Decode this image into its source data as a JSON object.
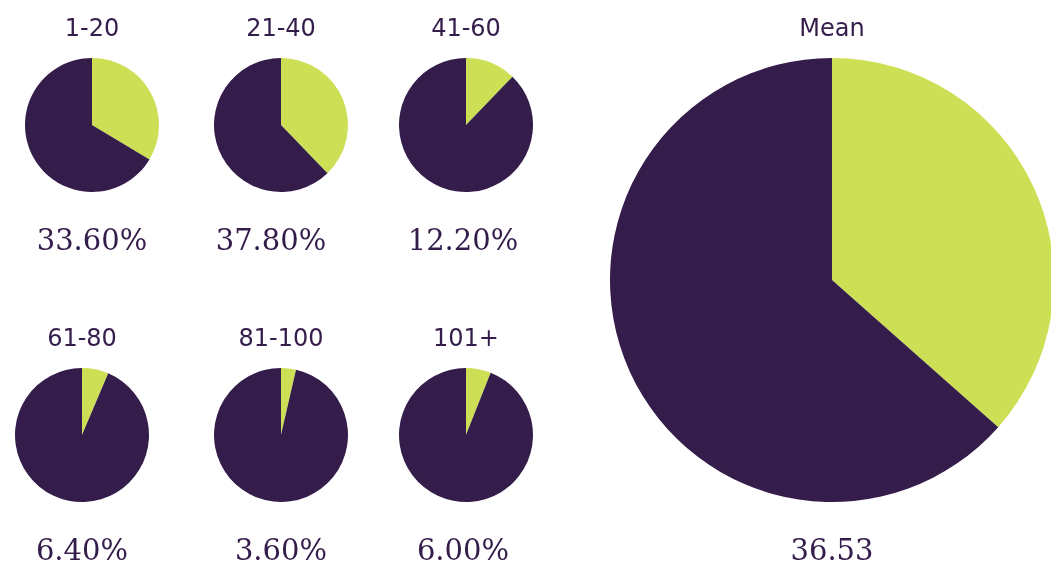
{
  "chart_data": [
    {
      "type": "pie",
      "title": "1-20",
      "categories": [
        null,
        null
      ],
      "values": [
        33.6,
        66.4
      ],
      "colors": [
        "#cddf55",
        "#341c4b"
      ],
      "annotations": [
        "33.60%"
      ]
    },
    {
      "type": "pie",
      "title": "21-40",
      "categories": [
        null,
        null
      ],
      "values": [
        37.8,
        62.2
      ],
      "colors": [
        "#cddf55",
        "#341c4b"
      ],
      "annotations": [
        "37.80%"
      ]
    },
    {
      "type": "pie",
      "title": "41-60",
      "categories": [
        null,
        null
      ],
      "values": [
        12.2,
        87.8
      ],
      "colors": [
        "#cddf55",
        "#341c4b"
      ],
      "annotations": [
        "12.20%"
      ]
    },
    {
      "type": "pie",
      "title": "61-80",
      "categories": [
        null,
        null
      ],
      "values": [
        6.4,
        93.6
      ],
      "colors": [
        "#cddf55",
        "#341c4b"
      ],
      "annotations": [
        "6.40%"
      ]
    },
    {
      "type": "pie",
      "title": "81-100",
      "categories": [
        null,
        null
      ],
      "values": [
        3.6,
        96.4
      ],
      "colors": [
        "#cddf55",
        "#341c4b"
      ],
      "annotations": [
        "3.60%"
      ]
    },
    {
      "type": "pie",
      "title": "101+",
      "categories": [
        null,
        null
      ],
      "values": [
        6.0,
        94.0
      ],
      "colors": [
        "#cddf55",
        "#341c4b"
      ],
      "annotations": [
        "6.00%"
      ]
    },
    {
      "type": "pie",
      "title": "Mean",
      "categories": [
        null,
        null
      ],
      "values": [
        36.53,
        63.47
      ],
      "colors": [
        "#cddf55",
        "#341c4b"
      ],
      "annotations": [
        "36.53"
      ]
    }
  ]
}
